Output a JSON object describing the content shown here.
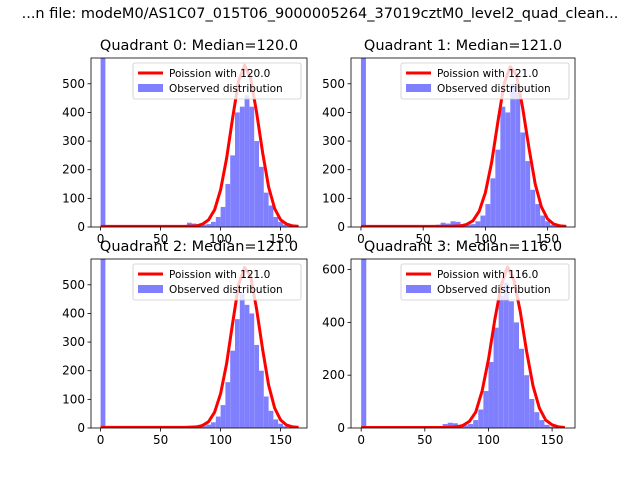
{
  "figure": {
    "suptitle": "...n file: modeM0/AS1C07_015T06_9000005264_37019cztM0_level2_quad_clean..."
  },
  "chart_data": [
    {
      "type": "bar",
      "title": "Quadrant 0: Median=120.0",
      "xlim": [
        -8,
        172
      ],
      "ylim": [
        0,
        590
      ],
      "xticks": [
        0,
        50,
        100,
        150
      ],
      "yticks": [
        0,
        100,
        200,
        300,
        400,
        500
      ],
      "legend": {
        "placement": "top-right",
        "entries": [
          "Poission with 120.0",
          "Observed distribution"
        ]
      },
      "colors": {
        "poisson": "#ff0000",
        "observed": "#8080ff"
      },
      "bin_width": 4,
      "observed": {
        "name": "Observed distribution",
        "bin_starts": [
          0,
          72,
          76,
          80,
          84,
          88,
          92,
          96,
          100,
          104,
          108,
          112,
          116,
          120,
          124,
          128,
          132,
          136,
          140,
          144,
          148,
          152,
          156,
          160
        ],
        "values": [
          590,
          15,
          12,
          10,
          8,
          10,
          18,
          35,
          70,
          150,
          250,
          400,
          420,
          460,
          420,
          300,
          210,
          120,
          75,
          35,
          18,
          8,
          3,
          1
        ]
      },
      "poisson": {
        "name": "Poission with 120.0",
        "x": [
          0,
          70,
          80,
          85,
          90,
          95,
          100,
          105,
          110,
          115,
          120,
          125,
          130,
          135,
          140,
          145,
          150,
          155,
          160,
          165
        ],
        "y": [
          2,
          2,
          4,
          10,
          25,
          60,
          130,
          240,
          380,
          510,
          565,
          520,
          400,
          260,
          140,
          65,
          25,
          10,
          4,
          2
        ]
      }
    },
    {
      "type": "bar",
      "title": "Quadrant 1: Median=121.0",
      "xlim": [
        -8,
        172
      ],
      "ylim": [
        0,
        590
      ],
      "xticks": [
        0,
        50,
        100,
        150
      ],
      "yticks": [
        0,
        100,
        200,
        300,
        400,
        500
      ],
      "legend": {
        "placement": "top-right",
        "entries": [
          "Poission with 121.0",
          "Observed distribution"
        ]
      },
      "colors": {
        "poisson": "#ff0000",
        "observed": "#8080ff"
      },
      "bin_width": 4,
      "observed": {
        "name": "Observed distribution",
        "bin_starts": [
          0,
          60,
          64,
          68,
          72,
          76,
          80,
          84,
          88,
          92,
          96,
          100,
          104,
          108,
          112,
          116,
          120,
          124,
          128,
          132,
          136,
          140,
          144,
          148,
          152,
          156
        ],
        "values": [
          590,
          8,
          15,
          12,
          20,
          18,
          10,
          8,
          10,
          20,
          40,
          80,
          170,
          270,
          420,
          400,
          500,
          470,
          330,
          230,
          130,
          80,
          40,
          20,
          8,
          3
        ]
      },
      "poisson": {
        "name": "Poission with 121.0",
        "x": [
          0,
          70,
          80,
          85,
          90,
          95,
          100,
          105,
          110,
          115,
          120,
          125,
          130,
          135,
          140,
          145,
          150,
          155,
          160,
          165
        ],
        "y": [
          2,
          2,
          4,
          9,
          22,
          55,
          120,
          225,
          365,
          500,
          560,
          530,
          415,
          275,
          150,
          70,
          28,
          10,
          4,
          2
        ]
      }
    },
    {
      "type": "bar",
      "title": "Quadrant 2: Median=121.0",
      "xlim": [
        -8,
        172
      ],
      "ylim": [
        0,
        590
      ],
      "xticks": [
        0,
        50,
        100,
        150
      ],
      "yticks": [
        0,
        100,
        200,
        300,
        400,
        500
      ],
      "legend": {
        "placement": "top-right",
        "entries": [
          "Poission with 121.0",
          "Observed distribution"
        ]
      },
      "colors": {
        "poisson": "#ff0000",
        "observed": "#8080ff"
      },
      "bin_width": 4,
      "observed": {
        "name": "Observed distribution",
        "bin_starts": [
          0,
          76,
          80,
          84,
          88,
          92,
          96,
          100,
          104,
          108,
          112,
          116,
          120,
          124,
          128,
          132,
          136,
          140,
          144,
          148,
          152,
          156
        ],
        "values": [
          590,
          8,
          10,
          8,
          12,
          20,
          40,
          80,
          160,
          270,
          380,
          470,
          430,
          400,
          290,
          200,
          110,
          60,
          30,
          15,
          6,
          2
        ]
      },
      "poisson": {
        "name": "Poission with 121.0",
        "x": [
          0,
          70,
          80,
          85,
          90,
          95,
          100,
          105,
          110,
          115,
          120,
          125,
          130,
          135,
          140,
          145,
          150,
          155,
          160,
          165
        ],
        "y": [
          2,
          2,
          4,
          9,
          22,
          55,
          120,
          225,
          365,
          500,
          560,
          530,
          415,
          275,
          150,
          70,
          28,
          10,
          4,
          2
        ]
      }
    },
    {
      "type": "bar",
      "title": "Quadrant 3: Median=116.0",
      "xlim": [
        -8,
        168
      ],
      "ylim": [
        0,
        640
      ],
      "xticks": [
        0,
        50,
        100,
        150
      ],
      "yticks": [
        0,
        200,
        400,
        600
      ],
      "legend": {
        "placement": "top-right",
        "entries": [
          "Poission with 116.0",
          "Observed distribution"
        ]
      },
      "colors": {
        "poisson": "#ff0000",
        "observed": "#8080ff"
      },
      "bin_width": 4,
      "observed": {
        "name": "Observed distribution",
        "bin_starts": [
          0,
          64,
          68,
          72,
          76,
          80,
          84,
          88,
          92,
          96,
          100,
          104,
          108,
          112,
          116,
          120,
          124,
          128,
          132,
          136,
          140,
          144,
          148,
          152
        ],
        "values": [
          640,
          15,
          20,
          18,
          12,
          10,
          15,
          30,
          70,
          140,
          250,
          380,
          500,
          550,
          480,
          400,
          300,
          200,
          110,
          60,
          30,
          12,
          5,
          2
        ]
      },
      "poisson": {
        "name": "Poission with 116.0",
        "x": [
          0,
          65,
          75,
          80,
          85,
          90,
          95,
          100,
          105,
          110,
          115,
          120,
          125,
          130,
          135,
          140,
          145,
          150,
          155,
          160
        ],
        "y": [
          2,
          2,
          4,
          10,
          25,
          60,
          140,
          260,
          410,
          540,
          610,
          560,
          440,
          290,
          160,
          75,
          30,
          12,
          4,
          2
        ]
      }
    }
  ]
}
